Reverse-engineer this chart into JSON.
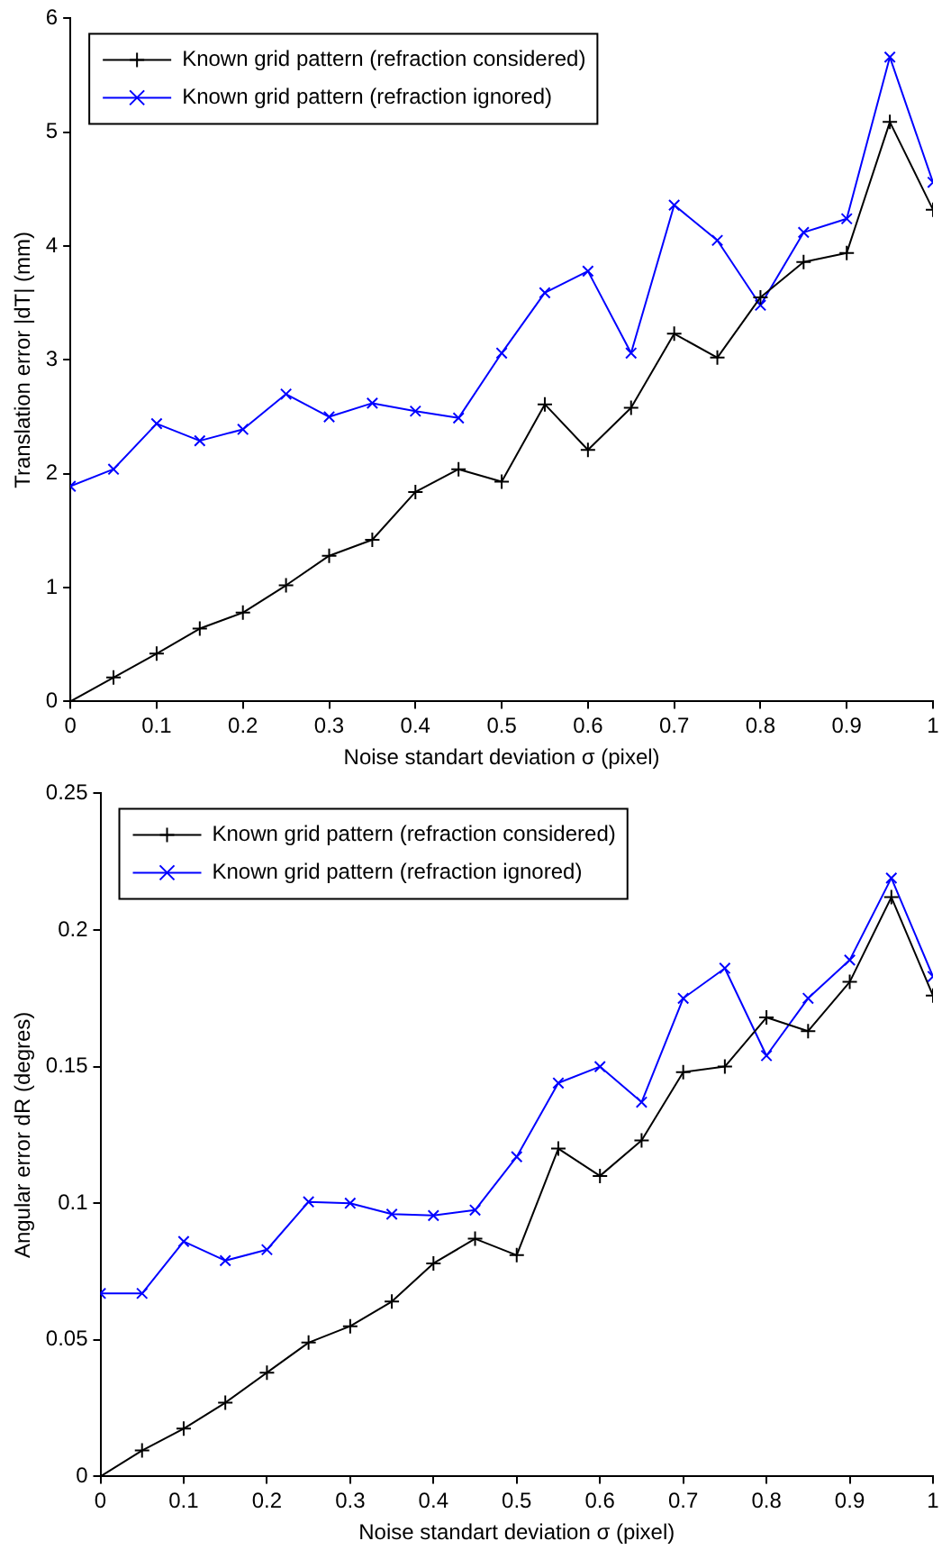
{
  "chart_data": [
    {
      "type": "line",
      "xlabel": "Noise standart deviation σ (pixel)",
      "ylabel": "Translation error |dT| (mm)",
      "x": [
        0,
        0.05,
        0.1,
        0.15,
        0.2,
        0.25,
        0.3,
        0.35,
        0.4,
        0.45,
        0.5,
        0.55,
        0.6,
        0.65,
        0.7,
        0.75,
        0.8,
        0.85,
        0.9,
        0.95,
        1
      ],
      "xlim": [
        0,
        1
      ],
      "xticks": [
        0,
        0.1,
        0.2,
        0.3,
        0.4,
        0.5,
        0.6,
        0.7,
        0.8,
        0.9,
        1
      ],
      "ylim": [
        0,
        6
      ],
      "yticks": [
        0,
        1,
        2,
        3,
        4,
        5,
        6
      ],
      "grid": false,
      "legend": "top left",
      "line_style": "solid",
      "series": [
        {
          "name": "Known grid pattern (refraction considered)",
          "color": "#000000",
          "marker": "plus",
          "values": [
            0,
            0.21,
            0.42,
            0.64,
            0.78,
            1.02,
            1.28,
            1.42,
            1.84,
            2.04,
            1.93,
            2.61,
            2.21,
            2.58,
            3.23,
            3.02,
            3.55,
            3.86,
            3.94,
            5.09,
            4.32
          ]
        },
        {
          "name": "Known grid pattern (refraction ignored)",
          "color": "#0000ff",
          "marker": "cross",
          "values": [
            1.89,
            2.04,
            2.44,
            2.29,
            2.39,
            2.7,
            2.5,
            2.62,
            2.55,
            2.49,
            3.06,
            3.59,
            3.78,
            3.06,
            4.36,
            4.05,
            3.48,
            4.12,
            4.24,
            5.66,
            4.56
          ]
        }
      ]
    },
    {
      "type": "line",
      "xlabel": "Noise standart deviation σ (pixel)",
      "ylabel": "Angular error dR (degres)",
      "x": [
        0,
        0.05,
        0.1,
        0.15,
        0.2,
        0.25,
        0.3,
        0.35,
        0.4,
        0.45,
        0.5,
        0.55,
        0.6,
        0.65,
        0.7,
        0.75,
        0.8,
        0.85,
        0.9,
        0.95,
        1
      ],
      "xlim": [
        0,
        1
      ],
      "xticks": [
        0,
        0.1,
        0.2,
        0.3,
        0.4,
        0.5,
        0.6,
        0.7,
        0.8,
        0.9,
        1
      ],
      "ylim": [
        0,
        0.25
      ],
      "yticks": [
        0,
        0.05,
        0.1,
        0.15,
        0.2,
        0.25
      ],
      "grid": false,
      "legend": "top left",
      "line_style": "solid",
      "series": [
        {
          "name": "Known grid pattern (refraction considered)",
          "color": "#000000",
          "marker": "plus",
          "values": [
            0,
            0.0095,
            0.0175,
            0.027,
            0.038,
            0.049,
            0.055,
            0.064,
            0.078,
            0.087,
            0.081,
            0.12,
            0.11,
            0.123,
            0.148,
            0.15,
            0.168,
            0.163,
            0.181,
            0.212,
            0.176
          ]
        },
        {
          "name": "Known grid pattern (refraction ignored)",
          "color": "#0000ff",
          "marker": "cross",
          "values": [
            0.067,
            0.067,
            0.086,
            0.079,
            0.083,
            0.1005,
            0.1,
            0.096,
            0.0955,
            0.0975,
            0.117,
            0.144,
            0.15,
            0.137,
            0.175,
            0.186,
            0.154,
            0.175,
            0.189,
            0.219,
            0.183
          ]
        }
      ]
    }
  ]
}
